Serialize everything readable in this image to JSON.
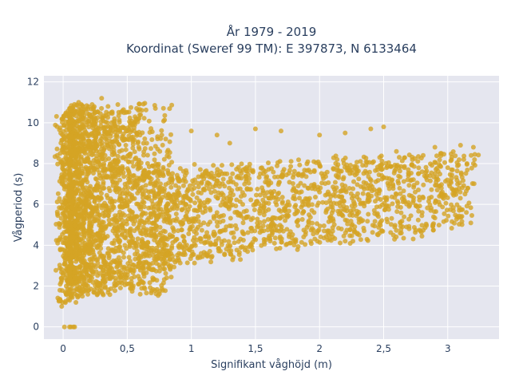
{
  "chart_data": {
    "type": "scatter",
    "title_line1": "År 1979 - 2019",
    "title_line2": "Koordinat (Sweref 99 TM): E 397873, N 6133464",
    "xlabel": "Signifikant våghöjd (m)",
    "ylabel": "Vågperiod (s)",
    "xlim": [
      -0.15,
      3.4
    ],
    "ylim": [
      -0.6,
      12.3
    ],
    "x_ticks": [
      0,
      0.5,
      1,
      1.5,
      2,
      2.5,
      3
    ],
    "x_tick_labels": [
      "0",
      "0,5",
      "1",
      "1,5",
      "2",
      "2,5",
      "3"
    ],
    "y_ticks": [
      0,
      2,
      4,
      6,
      8,
      10,
      12
    ],
    "y_tick_labels": [
      "0",
      "2",
      "4",
      "6",
      "8",
      "10",
      "12"
    ],
    "grid": true,
    "marker_color": "#d4a424",
    "plot_background": "#e5e6ef",
    "points": [
      [
        0.01,
        0.0
      ],
      [
        0.05,
        0.0
      ],
      [
        0.06,
        0.0
      ],
      [
        0.08,
        0.0
      ],
      [
        0.09,
        0.0
      ],
      [
        0.05,
        1.3
      ],
      [
        0.1,
        1.2
      ],
      [
        0.15,
        1.5
      ],
      [
        0.2,
        1.8
      ],
      [
        0.3,
        1.9
      ],
      [
        0.4,
        2.0
      ],
      [
        0.5,
        2.1
      ],
      [
        0.6,
        2.2
      ],
      [
        0.7,
        2.3
      ],
      [
        0.1,
        3.5
      ],
      [
        0.2,
        3.8
      ],
      [
        0.3,
        4.2
      ],
      [
        0.5,
        4.5
      ],
      [
        0.7,
        4.8
      ],
      [
        1.0,
        5.2
      ],
      [
        1.2,
        5.6
      ],
      [
        1.5,
        6.0
      ],
      [
        1.8,
        6.4
      ],
      [
        2.0,
        6.6
      ],
      [
        2.2,
        6.9
      ],
      [
        2.5,
        7.3
      ],
      [
        2.8,
        7.6
      ],
      [
        3.0,
        7.8
      ],
      [
        3.2,
        8.0
      ],
      [
        0.1,
        9.0
      ],
      [
        0.2,
        9.8
      ],
      [
        0.25,
        10.5
      ],
      [
        0.3,
        11.2
      ],
      [
        0.35,
        10.8
      ],
      [
        0.4,
        10.2
      ],
      [
        0.5,
        9.6
      ],
      [
        0.6,
        9.4
      ],
      [
        0.8,
        9.2
      ],
      [
        1.0,
        9.6
      ],
      [
        1.2,
        9.4
      ],
      [
        1.3,
        9.0
      ],
      [
        1.5,
        9.7
      ],
      [
        1.7,
        9.6
      ],
      [
        2.0,
        9.4
      ],
      [
        2.2,
        9.5
      ],
      [
        2.4,
        9.7
      ],
      [
        2.5,
        9.8
      ],
      [
        2.6,
        8.6
      ],
      [
        2.9,
        8.8
      ],
      [
        3.1,
        8.9
      ],
      [
        3.2,
        8.8
      ],
      [
        3.15,
        8.0
      ],
      [
        2.95,
        8.5
      ]
    ]
  }
}
